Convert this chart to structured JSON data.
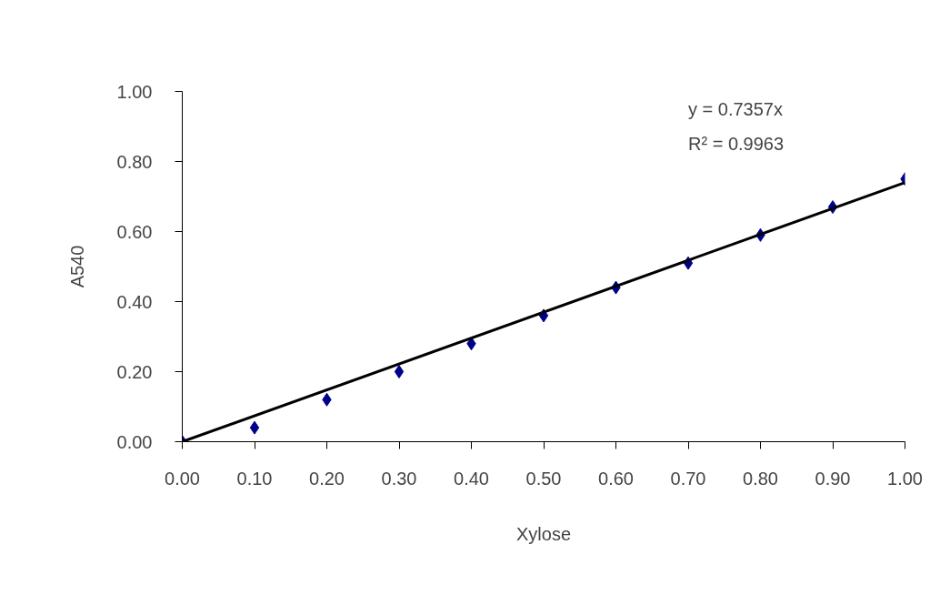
{
  "chart_data": {
    "type": "scatter",
    "xlabel": "Xylose",
    "ylabel": "A540",
    "x": [
      0,
      0.1,
      0.2,
      0.3,
      0.4,
      0.5,
      0.6,
      0.7,
      0.8,
      0.9,
      1.0
    ],
    "series": [
      {
        "color": "#00008b",
        "marker": "diamond",
        "values": [
          0.0,
          0.04,
          0.12,
          0.2,
          0.28,
          0.36,
          0.44,
          0.51,
          0.59,
          0.67,
          0.75
        ]
      },
      {
        "type": "line",
        "color": "#000000",
        "marker": "none",
        "x": [
          0,
          1
        ],
        "values": [
          0,
          0.74
        ]
      }
    ],
    "xlim": [
      0,
      1
    ],
    "ylim": [
      0,
      1
    ],
    "xticks": [
      {
        "value": 0,
        "label": "0.00"
      },
      {
        "value": 0.1,
        "label": "0.10"
      },
      {
        "value": 0.2,
        "label": "0.20"
      },
      {
        "value": 0.3,
        "label": "0.30"
      },
      {
        "value": 0.4,
        "label": "0.40"
      },
      {
        "value": 0.5,
        "label": "0.50"
      },
      {
        "value": 0.6,
        "label": "0.60"
      },
      {
        "value": 0.7,
        "label": "0.70"
      },
      {
        "value": 0.8,
        "label": "0.80"
      },
      {
        "value": 0.9,
        "label": "0.90"
      },
      {
        "value": 1,
        "label": "1.00"
      }
    ],
    "yticks": [
      {
        "value": 0,
        "label": "0.00"
      },
      {
        "value": 0.2,
        "label": "0.20"
      },
      {
        "value": 0.4,
        "label": "0.40"
      },
      {
        "value": 0.6,
        "label": "0.60"
      },
      {
        "value": 0.8,
        "label": "0.80"
      },
      {
        "value": 1,
        "label": "1.00"
      }
    ],
    "annotations": [
      "y = 0.7357x",
      "R² = 0.9963"
    ],
    "grid": false
  }
}
